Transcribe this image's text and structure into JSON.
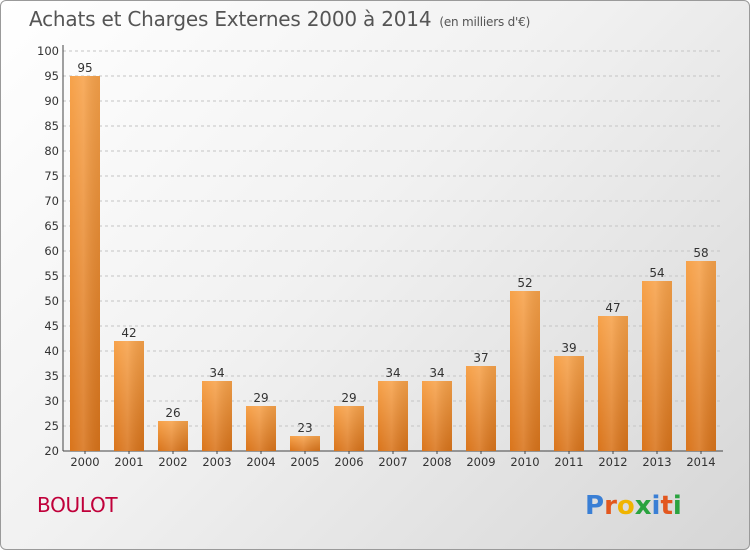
{
  "header": {
    "title": "Achats et Charges Externes 2000 à 2014",
    "unit": "(en milliers d'€)"
  },
  "footer": {
    "place": "BOULOT",
    "brand": "Proxiti",
    "brand_colors": [
      "#3a7fd5",
      "#e2571e",
      "#f0b400",
      "#2aa33f",
      "#3a7fd5",
      "#e2571e",
      "#2aa33f"
    ]
  },
  "chart_data": {
    "type": "bar",
    "categories": [
      "2000",
      "2001",
      "2002",
      "2003",
      "2004",
      "2005",
      "2006",
      "2007",
      "2008",
      "2009",
      "2010",
      "2011",
      "2012",
      "2013",
      "2014"
    ],
    "values": [
      95,
      42,
      26,
      34,
      29,
      23,
      29,
      34,
      34,
      37,
      52,
      39,
      47,
      54,
      58
    ],
    "ylim": [
      20,
      100
    ],
    "yticks": [
      20,
      25,
      30,
      35,
      40,
      45,
      50,
      55,
      60,
      65,
      70,
      75,
      80,
      85,
      90,
      95,
      100
    ],
    "grid": "horizontal dashed",
    "bar_color": "#f08a24",
    "title": "Achats et Charges Externes 2000 à 2014",
    "xlabel": "",
    "ylabel": ""
  }
}
